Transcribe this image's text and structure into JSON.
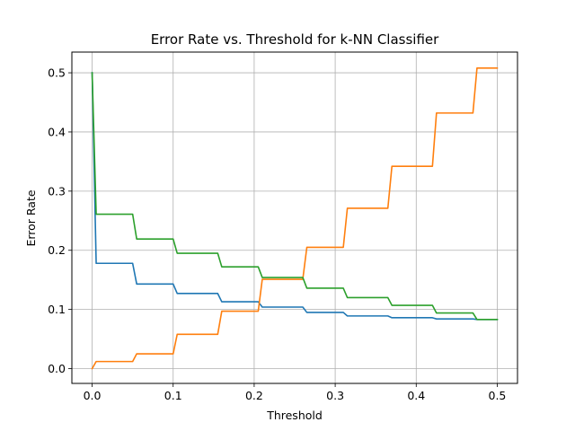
{
  "chart_data": {
    "type": "line",
    "title": "Error Rate vs. Threshold for k-NN Classifier",
    "xlabel": "Threshold",
    "ylabel": "Error Rate",
    "xlim": [
      -0.025,
      0.525
    ],
    "ylim": [
      -0.025,
      0.535
    ],
    "xticks": [
      0.0,
      0.1,
      0.2,
      0.3,
      0.4,
      0.5
    ],
    "xtick_labels": [
      "0.0",
      "0.1",
      "0.2",
      "0.3",
      "0.4",
      "0.5"
    ],
    "yticks": [
      0.0,
      0.1,
      0.2,
      0.3,
      0.4,
      0.5
    ],
    "ytick_labels": [
      "0.0",
      "0.1",
      "0.2",
      "0.3",
      "0.4",
      "0.5"
    ],
    "grid": true,
    "legend": false,
    "series": [
      {
        "color": "#1f77b4",
        "x": [
          0.0,
          0.005,
          0.05,
          0.055,
          0.1,
          0.105,
          0.155,
          0.16,
          0.205,
          0.21,
          0.26,
          0.265,
          0.31,
          0.315,
          0.365,
          0.37,
          0.42,
          0.425,
          0.47,
          0.475,
          0.5
        ],
        "y": [
          0.5,
          0.178,
          0.178,
          0.143,
          0.143,
          0.127,
          0.127,
          0.113,
          0.113,
          0.104,
          0.104,
          0.095,
          0.095,
          0.089,
          0.089,
          0.086,
          0.086,
          0.084,
          0.084,
          0.083,
          0.083
        ]
      },
      {
        "color": "#ff7f0e",
        "x": [
          0.0,
          0.005,
          0.05,
          0.055,
          0.1,
          0.105,
          0.155,
          0.16,
          0.205,
          0.21,
          0.26,
          0.265,
          0.31,
          0.315,
          0.365,
          0.37,
          0.42,
          0.425,
          0.47,
          0.475,
          0.5
        ],
        "y": [
          0.0,
          0.012,
          0.012,
          0.025,
          0.025,
          0.058,
          0.058,
          0.097,
          0.097,
          0.151,
          0.151,
          0.205,
          0.205,
          0.271,
          0.271,
          0.342,
          0.342,
          0.432,
          0.432,
          0.508,
          0.508
        ]
      },
      {
        "color": "#2ca02c",
        "x": [
          0.0,
          0.005,
          0.05,
          0.055,
          0.1,
          0.105,
          0.155,
          0.16,
          0.205,
          0.21,
          0.26,
          0.265,
          0.31,
          0.315,
          0.365,
          0.37,
          0.42,
          0.425,
          0.47,
          0.475,
          0.5
        ],
        "y": [
          0.5,
          0.261,
          0.261,
          0.219,
          0.219,
          0.195,
          0.195,
          0.172,
          0.172,
          0.154,
          0.154,
          0.136,
          0.136,
          0.12,
          0.12,
          0.107,
          0.107,
          0.094,
          0.094,
          0.083,
          0.083
        ]
      }
    ]
  }
}
